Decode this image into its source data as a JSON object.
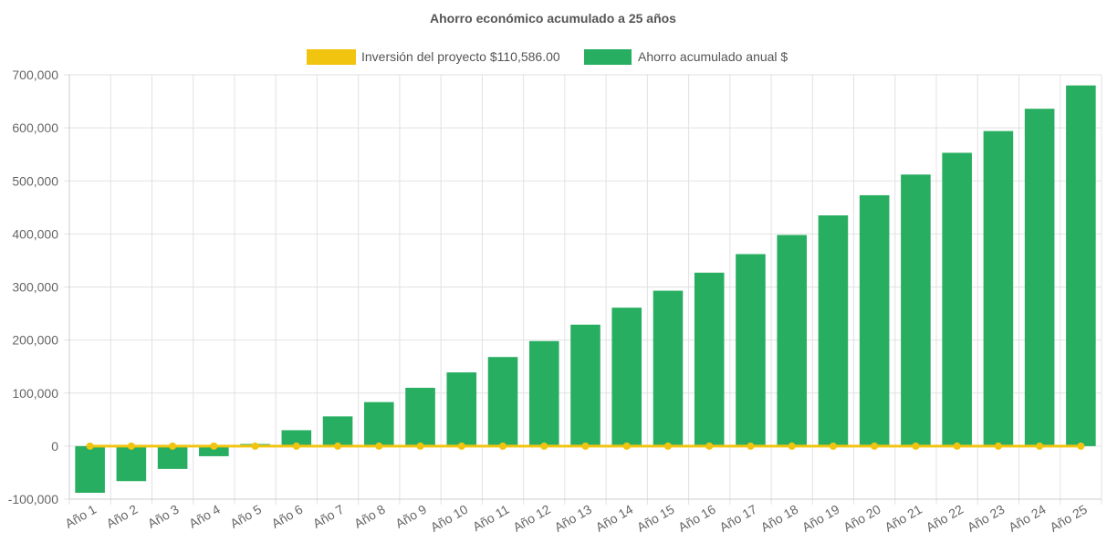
{
  "chart_data": {
    "type": "bar",
    "title": "Ahorro económico acumulado a 25 años",
    "categories": [
      "Año 1",
      "Año 2",
      "Año 3",
      "Año 4",
      "Año 5",
      "Año 6",
      "Año 7",
      "Año 8",
      "Año 9",
      "Año 10",
      "Año 11",
      "Año 12",
      "Año 13",
      "Año 14",
      "Año 15",
      "Año 16",
      "Año 17",
      "Año 18",
      "Año 19",
      "Año 20",
      "Año 21",
      "Año 22",
      "Año 23",
      "Año 24",
      "Año 25"
    ],
    "series": [
      {
        "name": "Inversión del proyecto $110,586.00",
        "type": "line",
        "color": "#f1c40f",
        "values": [
          0,
          0,
          0,
          0,
          0,
          0,
          0,
          0,
          0,
          0,
          0,
          0,
          0,
          0,
          0,
          0,
          0,
          0,
          0,
          0,
          0,
          0,
          0,
          0,
          0
        ]
      },
      {
        "name": "Ahorro acumulado anual $",
        "type": "bar",
        "color": "#27ae60",
        "values": [
          -88000,
          -66000,
          -43000,
          -19000,
          4000,
          30000,
          56000,
          83000,
          110000,
          139000,
          168000,
          198000,
          229000,
          261000,
          293000,
          327000,
          362000,
          398000,
          435000,
          473000,
          512000,
          553000,
          594000,
          636000,
          680000
        ]
      }
    ],
    "ylim": [
      -100000,
      700000
    ],
    "yticks": [
      "700,000",
      "600,000",
      "500,000",
      "400,000",
      "300,000",
      "200,000",
      "100,000",
      "0",
      "-100,000"
    ],
    "ytick_values": [
      700000,
      600000,
      500000,
      400000,
      300000,
      200000,
      100000,
      0,
      -100000
    ],
    "grid": true,
    "legend_position": "top",
    "xlabel": "",
    "ylabel": ""
  }
}
